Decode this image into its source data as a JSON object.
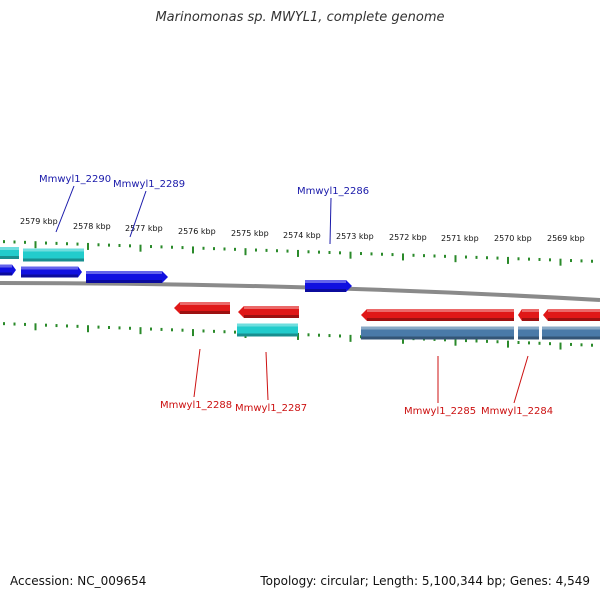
{
  "title": "Marinomonas sp. MWYL1, complete genome",
  "footer": {
    "accession": "Accession: NC_009654",
    "summary": "Topology: circular; Length: 5,100,344 bp; Genes: 4,549"
  },
  "colors": {
    "tick": "#2a8a2a",
    "backbone": "#8a8a8a",
    "forward_gene": "#1010e0",
    "forward_cds": "#22cccc",
    "reverse_gene": "#e01818",
    "reverse_cds": "#4a7aa8",
    "forward_label": "#1a1aaa",
    "reverse_label": "#cc1111"
  },
  "ticks": [
    "2579 kbp",
    "2578 kbp",
    "2577 kbp",
    "2576 kbp",
    "2575 kbp",
    "2574 kbp",
    "2573 kbp",
    "2572 kbp",
    "2571 kbp",
    "2570 kbp",
    "2569 kbp"
  ],
  "genes_forward": [
    "Mmwyl1_2290",
    "Mmwyl1_2289",
    "Mmwyl1_2286"
  ],
  "genes_reverse": [
    "Mmwyl1_2288",
    "Mmwyl1_2287",
    "Mmwyl1_2285",
    "Mmwyl1_2284"
  ]
}
